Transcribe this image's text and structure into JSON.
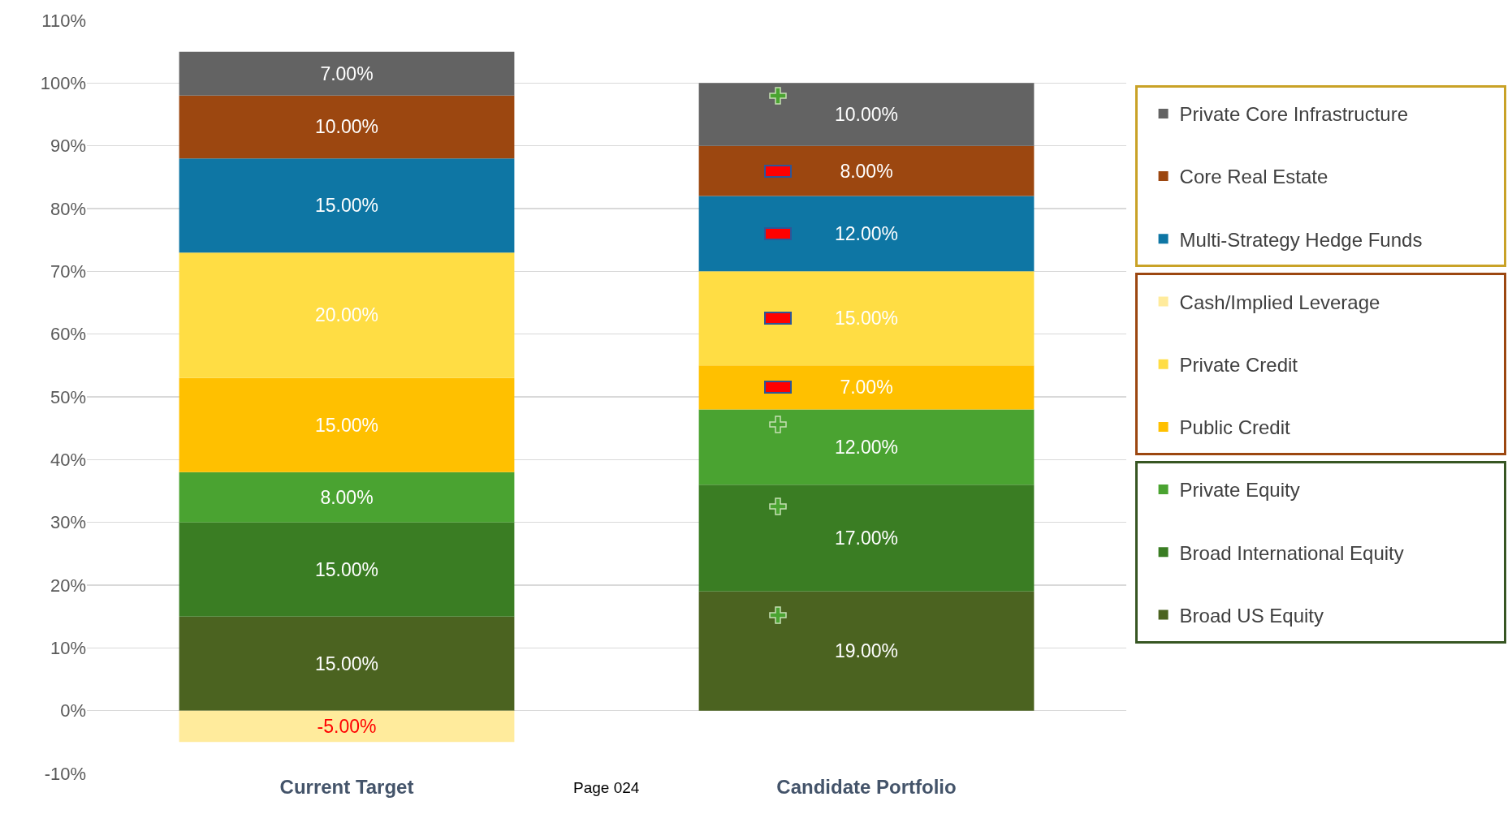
{
  "chart_data": {
    "type": "bar",
    "stacked": true,
    "categories": [
      "Current Target",
      "Candidate Portfolio"
    ],
    "series": [
      {
        "name": "Broad US Equity",
        "color": "#4b6320",
        "values": [
          15,
          19
        ],
        "value_labels": [
          "15.00%",
          "19.00%"
        ]
      },
      {
        "name": "Broad International Equity",
        "color": "#3a7d23",
        "values": [
          15,
          17
        ],
        "value_labels": [
          "15.00%",
          "17.00%"
        ]
      },
      {
        "name": "Private Equity",
        "color": "#4aa331",
        "values": [
          8,
          12
        ],
        "value_labels": [
          "8.00%",
          "12.00%"
        ]
      },
      {
        "name": "Public Credit",
        "color": "#ffc000",
        "values": [
          15,
          7
        ],
        "value_labels": [
          "15.00%",
          "7.00%"
        ]
      },
      {
        "name": "Private Credit",
        "color": "#ffdd44",
        "values": [
          20,
          15
        ],
        "value_labels": [
          "20.00%",
          "15.00%"
        ]
      },
      {
        "name": "Cash/Implied Leverage",
        "color": "#ffeb9c",
        "values": [
          -5,
          null
        ],
        "value_labels": [
          "-5.00%",
          null
        ]
      },
      {
        "name": "Multi-Strategy Hedge Funds",
        "color": "#0e76a4",
        "values": [
          15,
          12
        ],
        "value_labels": [
          "15.00%",
          "12.00%"
        ]
      },
      {
        "name": "Core Real Estate",
        "color": "#9c4710",
        "values": [
          10,
          8
        ],
        "value_labels": [
          "10.00%",
          "8.00%"
        ]
      },
      {
        "name": "Private Core Infrastructure",
        "color": "#636363",
        "values": [
          7,
          10
        ],
        "value_labels": [
          "7.00%",
          "10.00%"
        ]
      }
    ],
    "ylim": [
      -10,
      110
    ],
    "yticks": [
      {
        "value": -10,
        "label": "-10%"
      },
      {
        "value": 0,
        "label": "0%"
      },
      {
        "value": 10,
        "label": "10%"
      },
      {
        "value": 20,
        "label": "20%"
      },
      {
        "value": 30,
        "label": "30%"
      },
      {
        "value": 40,
        "label": "40%"
      },
      {
        "value": 50,
        "label": "50%"
      },
      {
        "value": 60,
        "label": "60%"
      },
      {
        "value": 70,
        "label": "70%"
      },
      {
        "value": 80,
        "label": "80%"
      },
      {
        "value": 90,
        "label": "90%"
      },
      {
        "value": 100,
        "label": "100%"
      },
      {
        "value": 110,
        "label": "110%"
      }
    ],
    "grid": "y",
    "legend": "right",
    "annotations": [
      "Page 024"
    ]
  }
}
